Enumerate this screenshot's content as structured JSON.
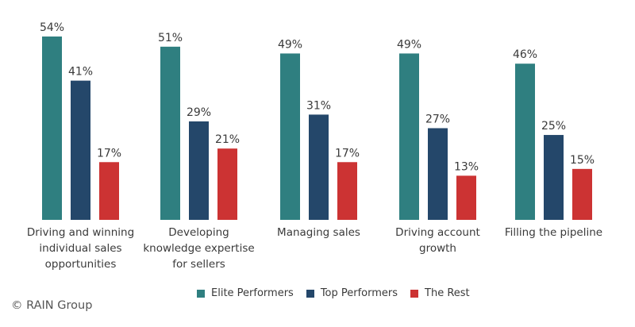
{
  "chart_data": {
    "type": "bar",
    "categories": [
      [
        "Driving and winning",
        "individual sales",
        "opportunities"
      ],
      [
        "Developing",
        "knowledge expertise",
        "for sellers"
      ],
      [
        "Managing sales"
      ],
      [
        "Driving account",
        "growth"
      ],
      [
        "Filling the pipeline"
      ]
    ],
    "series": [
      {
        "name": "Elite Performers",
        "color": "#2f7f80",
        "values": [
          54,
          51,
          49,
          49,
          46
        ],
        "labels": [
          "54%",
          "51%",
          "49%",
          "49%",
          "46%"
        ]
      },
      {
        "name": "Top Performers",
        "color": "#24476a",
        "values": [
          41,
          29,
          31,
          27,
          25
        ],
        "labels": [
          "41%",
          "29%",
          "31%",
          "27%",
          "25%"
        ]
      },
      {
        "name": "The Rest",
        "color": "#cc3333",
        "values": [
          17,
          21,
          17,
          13,
          15
        ],
        "labels": [
          "17%",
          "21%",
          "17%",
          "13%",
          "15%"
        ]
      }
    ],
    "ylim": [
      0,
      54
    ],
    "legend_position": "bottom",
    "grid": false
  },
  "footer": {
    "credit": "© RAIN Group"
  }
}
